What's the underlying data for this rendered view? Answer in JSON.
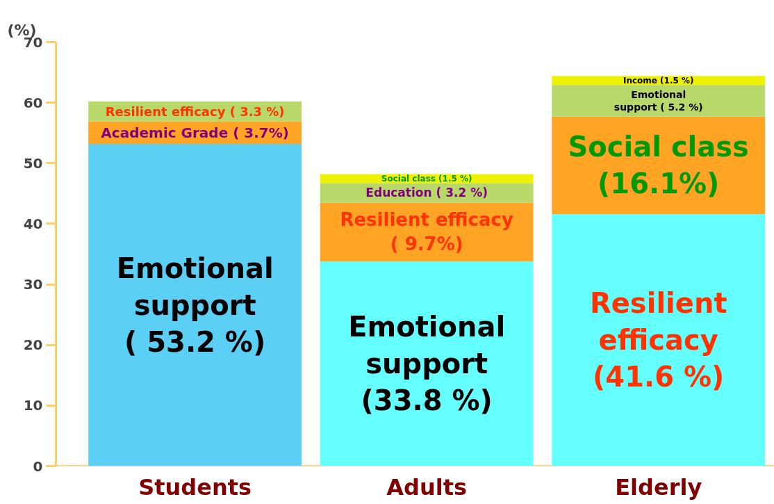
{
  "chart_data": {
    "type": "bar",
    "stacked": true,
    "ylabel": "(%)",
    "categories": [
      "Students",
      "Adults",
      "Elderly"
    ],
    "series": [
      {
        "colors": [
          "#5ccff5",
          "#66ffff",
          "#66ffff"
        ],
        "values": [
          53.2,
          33.8,
          41.6
        ],
        "value_labels": [
          "Emotional\nsupport\n( 53.2 %)",
          "Emotional\nsupport\n(33.8 %)",
          "Resilient\nefficacy\n(41.6 %)"
        ]
      },
      {
        "colors": [
          "#ffa424",
          "#ffa424",
          "#ffa424"
        ],
        "values": [
          3.7,
          9.7,
          16.1
        ],
        "value_labels": [
          "Academic Grade ( 3.7%)",
          "Resilient efficacy\n( 9.7%)",
          "Social class\n(16.1%)"
        ]
      },
      {
        "colors": [
          "#b8d86a",
          "#b8d86a",
          "#b8d86a"
        ],
        "values": [
          3.3,
          3.2,
          5.2
        ],
        "value_labels": [
          "Resilient efficacy ( 3.3 %)",
          "Education ( 3.2 %)",
          "Emotional\nsupport ( 5.2 %)"
        ]
      },
      {
        "colors": [
          null,
          "#eef200",
          "#eef200"
        ],
        "values": [
          null,
          1.5,
          1.5
        ],
        "value_labels": [
          null,
          "Social class (1.5 %)",
          "Income (1.5 %)"
        ]
      }
    ],
    "ylim": [
      0,
      70
    ],
    "yticks": [
      0,
      10,
      20,
      30,
      40,
      50,
      60,
      70
    ],
    "grid": false
  }
}
